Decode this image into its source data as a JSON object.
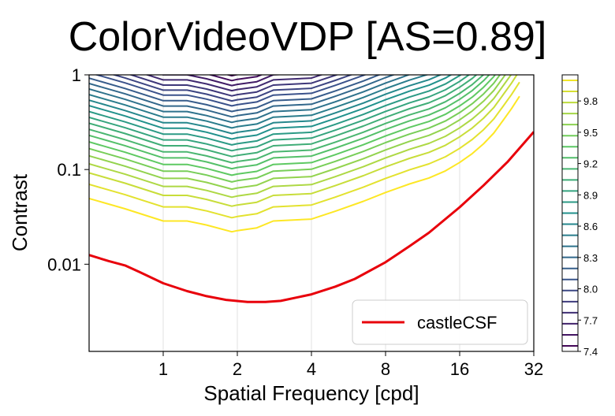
{
  "chart_data": {
    "type": "line",
    "title": "ColorVideoVDP [AS=0.89]",
    "xlabel": "Spatial Frequency [cpd]",
    "ylabel": "Contrast",
    "x_scale": "log2",
    "y_scale": "log10",
    "xlim": [
      0.5,
      32
    ],
    "ylim": [
      0.0012,
      1
    ],
    "x_ticks": [
      1,
      2,
      4,
      8,
      16,
      32
    ],
    "x_tick_labels": [
      "1",
      "2",
      "4",
      "8",
      "16",
      "32"
    ],
    "y_ticks": [
      0.01,
      0.1,
      1
    ],
    "y_tick_labels": [
      "0.01",
      "0.1",
      "1"
    ],
    "grid": "vertical lines at x ticks",
    "legend_position": "bottom-right",
    "series": [
      {
        "name": "castleCSF",
        "color": "#e8000b",
        "x": [
          0.5,
          0.6,
          0.7,
          0.8,
          1.0,
          1.25,
          1.5,
          1.8,
          2.2,
          2.6,
          3.0,
          4.0,
          5.0,
          6.0,
          8.0,
          10.0,
          12.0,
          16.0,
          20.0,
          25.0,
          32.0
        ],
        "y": [
          0.0125,
          0.0108,
          0.0097,
          0.0083,
          0.0063,
          0.0052,
          0.0046,
          0.0042,
          0.004,
          0.004,
          0.0041,
          0.0048,
          0.0058,
          0.007,
          0.0105,
          0.0155,
          0.0215,
          0.04,
          0.068,
          0.12,
          0.25
        ]
      }
    ],
    "contours": {
      "colormap": "viridis",
      "line_width": 2,
      "levels_y_at_2cpd": [
        0.022,
        0.031,
        0.041,
        0.051,
        0.062,
        0.074,
        0.087,
        0.102,
        0.118,
        0.137,
        0.158,
        0.182,
        0.21,
        0.24,
        0.275,
        0.315,
        0.36,
        0.41,
        0.47,
        0.53,
        0.6,
        0.68,
        0.77,
        0.87,
        0.98
      ],
      "shape": {
        "x": [
          0.5,
          0.7,
          1.0,
          1.25,
          1.5,
          1.9,
          2.0,
          2.4,
          2.8,
          4.0,
          5.0,
          6.5,
          8.0,
          10.0,
          12.0,
          14.0,
          16.0,
          18.0,
          20.0,
          22.0,
          24.0,
          26.0,
          28.0
        ],
        "y_factor": [
          2.25,
          1.75,
          1.3,
          1.3,
          1.18,
          1.0,
          1.03,
          1.1,
          1.3,
          1.36,
          1.65,
          2.1,
          2.6,
          3.2,
          3.7,
          4.4,
          5.4,
          6.7,
          8.5,
          11,
          15,
          20,
          27
        ]
      }
    },
    "colorbar": {
      "min": 7.4,
      "max": 10.05,
      "ticks": [
        7.4,
        7.7,
        8.0,
        8.3,
        8.6,
        8.9,
        9.2,
        9.5,
        9.8
      ],
      "tick_labels": [
        "7.4",
        "7.7",
        "8.0",
        "8.3",
        "8.6",
        "8.9",
        "9.2",
        "9.5",
        "9.8"
      ],
      "n_levels": 25
    }
  }
}
